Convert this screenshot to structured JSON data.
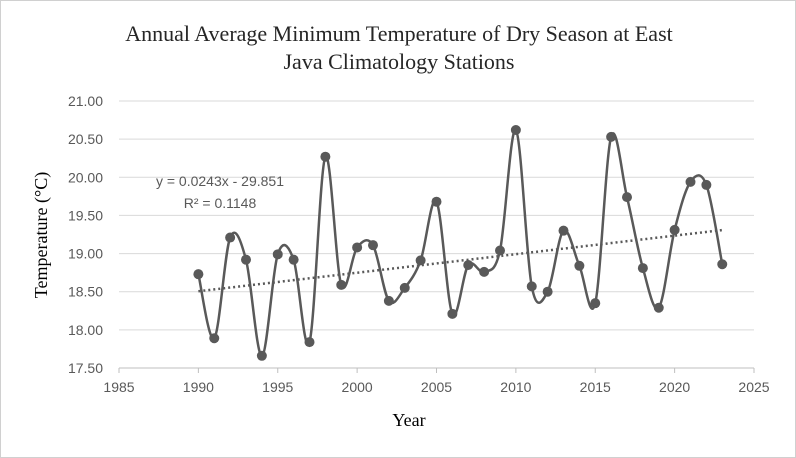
{
  "chart_data": {
    "type": "scatter",
    "title_lines": [
      "Annual Average Minimum Temperature of Dry Season at East",
      "Java Climatology Stations"
    ],
    "xlabel": "Year",
    "ylabel": "Temperature (°C)",
    "xlim": [
      1985,
      2025
    ],
    "ylim": [
      17.5,
      21.0
    ],
    "xticks": [
      "1985",
      "1990",
      "1995",
      "2000",
      "2005",
      "2010",
      "2015",
      "2020",
      "2025"
    ],
    "yticks": [
      "17.50",
      "18.00",
      "18.50",
      "19.00",
      "19.50",
      "20.00",
      "20.50",
      "21.00"
    ],
    "grid": "horizontal",
    "line_style": "smoothed",
    "series_color": "#595959",
    "trend_color": "#595959",
    "x": [
      1990,
      1991,
      1992,
      1993,
      1994,
      1995,
      1996,
      1997,
      1998,
      1999,
      2000,
      2001,
      2002,
      2003,
      2004,
      2005,
      2006,
      2007,
      2008,
      2009,
      2010,
      2011,
      2012,
      2013,
      2014,
      2015,
      2016,
      2017,
      2018,
      2019,
      2020,
      2021,
      2022,
      2023
    ],
    "values": [
      18.73,
      17.89,
      19.21,
      18.92,
      17.66,
      18.99,
      18.92,
      17.84,
      20.27,
      18.59,
      19.08,
      19.11,
      18.38,
      18.55,
      18.91,
      19.68,
      18.21,
      18.85,
      18.76,
      19.04,
      20.62,
      18.57,
      18.5,
      19.3,
      18.84,
      18.35,
      20.53,
      19.74,
      18.81,
      18.29,
      19.31,
      19.94,
      19.9,
      18.86
    ],
    "trendline": {
      "type": "linear",
      "slope": 0.0243,
      "intercept": -29.851,
      "equation": "y = 0.0243x - 29.851",
      "r_squared": "R² = 0.1148"
    }
  }
}
